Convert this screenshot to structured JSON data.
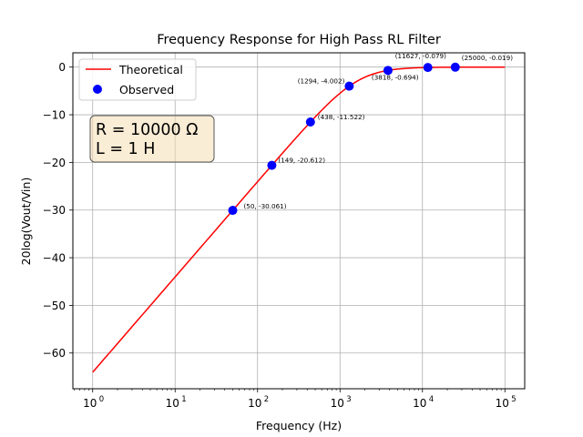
{
  "chart_data": {
    "type": "line",
    "title": "Frequency Response for High Pass RL Filter",
    "xlabel": "Frequency (Hz)",
    "ylabel": "20log(Vout/Vin)",
    "xscale": "log",
    "xlim": [
      1,
      100000
    ],
    "ylim": [
      -67.5,
      3
    ],
    "x_tick_labels": [
      {
        "base": "10",
        "exp": "0"
      },
      {
        "base": "10",
        "exp": "1"
      },
      {
        "base": "10",
        "exp": "2"
      },
      {
        "base": "10",
        "exp": "3"
      },
      {
        "base": "10",
        "exp": "4"
      },
      {
        "base": "10",
        "exp": "5"
      }
    ],
    "x_tick_values": [
      1,
      10,
      100,
      1000,
      10000,
      100000
    ],
    "y_tick_labels": [
      "0",
      "−10",
      "−20",
      "−30",
      "−40",
      "−50",
      "−60"
    ],
    "y_tick_values": [
      0,
      -10,
      -20,
      -30,
      -40,
      -50,
      -60
    ],
    "grid": true,
    "legend_position": "top-left",
    "series": [
      {
        "name": "Theoretical",
        "kind": "line",
        "color": "#ff0000",
        "model": {
          "R": 10000,
          "L": 1
        }
      },
      {
        "name": "Observed",
        "kind": "scatter",
        "color": "#0000ff",
        "points": [
          {
            "x": 50,
            "y": -30.061,
            "label": "(50, -30.061)"
          },
          {
            "x": 149,
            "y": -20.612,
            "label": "(149, -20.612)"
          },
          {
            "x": 438,
            "y": -11.522,
            "label": "(438, -11.522)"
          },
          {
            "x": 1294,
            "y": -4.002,
            "label": "(1294, -4.002)"
          },
          {
            "x": 3818,
            "y": -0.694,
            "label": "(3818, -0.694)"
          },
          {
            "x": 11627,
            "y": -0.079,
            "label": "(11627, -0.079)"
          },
          {
            "x": 25000,
            "y": -0.019,
            "label": "(25000, -0.019)"
          }
        ]
      }
    ],
    "annotation_box": {
      "lines": [
        "R = 10000 Ω",
        "L = 1 H"
      ],
      "background": "#f5deb3"
    }
  }
}
